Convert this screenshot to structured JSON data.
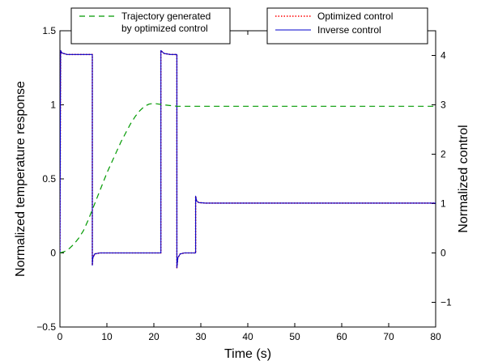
{
  "chart_data": {
    "type": "line",
    "xlabel": "Time (s)",
    "ylabel_left": "Normalized temperature response",
    "ylabel_right": "Normalized control",
    "xlim": [
      0,
      80
    ],
    "ylim_left": [
      -0.5,
      1.5
    ],
    "ylim_right": [
      -1.5,
      4.5
    ],
    "x_ticks": [
      0,
      10,
      20,
      30,
      40,
      50,
      60,
      70,
      80
    ],
    "y_left_ticks": [
      -0.5,
      0,
      0.5,
      1,
      1.5
    ],
    "y_left_tick_labels": [
      "−0.5",
      "0",
      "0.5",
      "1",
      "1.5"
    ],
    "y_right_ticks": [
      -1,
      0,
      1,
      2,
      3,
      4
    ],
    "y_right_tick_labels": [
      "−1",
      "0",
      "1",
      "2",
      "3",
      "4"
    ],
    "grid": false,
    "legends": [
      {
        "placement": "top-left",
        "entries": [
          {
            "series": "trajectory",
            "text_lines": [
              "Trajectory generated",
              "by optimized control"
            ]
          }
        ]
      },
      {
        "placement": "top-right",
        "entries": [
          {
            "series": "optimized",
            "text_lines": [
              "Optimized control"
            ]
          },
          {
            "series": "inverse",
            "text_lines": [
              "Inverse control"
            ]
          }
        ]
      }
    ],
    "series": [
      {
        "id": "trajectory",
        "name": "Trajectory generated by optimized control",
        "axis": "left",
        "style": "dashed",
        "color": "#009900",
        "x": [
          0,
          1,
          2,
          3,
          4,
          5,
          6,
          7,
          8,
          9,
          10,
          11,
          12,
          13,
          14,
          15,
          16,
          17,
          18,
          19,
          20,
          21,
          22,
          25,
          30,
          40,
          50,
          60,
          70,
          80
        ],
        "y": [
          0,
          0.01,
          0.03,
          0.06,
          0.1,
          0.15,
          0.22,
          0.3,
          0.38,
          0.46,
          0.54,
          0.61,
          0.68,
          0.75,
          0.81,
          0.87,
          0.92,
          0.96,
          0.99,
          1.005,
          1.01,
          1.005,
          1.0,
          0.99,
          0.99,
          0.99,
          0.99,
          0.99,
          0.99,
          0.99
        ]
      },
      {
        "id": "optimized",
        "name": "Optimized control",
        "axis": "right",
        "style": "dotted",
        "color": "#ff0000",
        "x": [
          0,
          0.15,
          0.4,
          1.5,
          6.9,
          6.9,
          7.0,
          7.4,
          8.5,
          21.5,
          21.5,
          21.7,
          22.2,
          23.5,
          24.9,
          24.9,
          25.1,
          25.6,
          26.5,
          28.9,
          28.9,
          29.1,
          29.6,
          31,
          80
        ],
        "y": [
          0,
          4.1,
          4.05,
          4.02,
          4.02,
          -0.25,
          -0.1,
          -0.02,
          0.0,
          0.0,
          4.1,
          4.08,
          4.04,
          4.02,
          4.02,
          -0.3,
          -0.1,
          -0.02,
          0.0,
          0.0,
          1.15,
          1.05,
          1.02,
          1.01,
          1.01
        ]
      },
      {
        "id": "inverse",
        "name": "Inverse control",
        "axis": "right",
        "style": "solid",
        "color": "#0000cc",
        "x": [
          0,
          0.15,
          0.4,
          1.5,
          6.9,
          6.9,
          7.0,
          7.4,
          8.5,
          21.5,
          21.5,
          21.7,
          22.2,
          23.5,
          24.9,
          24.9,
          25.1,
          25.6,
          26.5,
          28.9,
          28.9,
          29.1,
          29.6,
          31,
          80
        ],
        "y": [
          0,
          4.1,
          4.05,
          4.02,
          4.02,
          -0.25,
          -0.1,
          -0.02,
          0.0,
          0.0,
          4.1,
          4.08,
          4.04,
          4.02,
          4.02,
          -0.3,
          -0.1,
          -0.02,
          0.0,
          0.0,
          1.15,
          1.05,
          1.02,
          1.01,
          1.01
        ]
      }
    ]
  }
}
